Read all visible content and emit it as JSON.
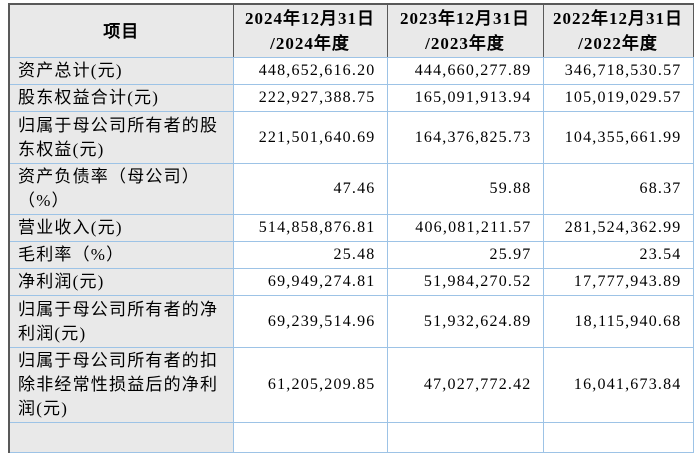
{
  "table": {
    "header": {
      "item": "项目",
      "cols": [
        {
          "line1": "2024年12月31日",
          "line2": "/2024年度"
        },
        {
          "line1": "2023年12月31日",
          "line2": "/2023年度"
        },
        {
          "line1": "2022年12月31日",
          "line2": "/2022年度"
        }
      ]
    },
    "rows": [
      {
        "label": "资产总计(元)",
        "v1": "448,652,616.20",
        "v2": "444,660,277.89",
        "v3": "346,718,530.57"
      },
      {
        "label": "股东权益合计(元)",
        "v1": "222,927,388.75",
        "v2": "165,091,913.94",
        "v3": "105,019,029.57"
      },
      {
        "label": "归属于母公司所有者的股东权益(元)",
        "v1": "221,501,640.69",
        "v2": "164,376,825.73",
        "v3": "104,355,661.99"
      },
      {
        "label": "资产负债率（母公司）（%）",
        "v1": "47.46",
        "v2": "59.88",
        "v3": "68.37"
      },
      {
        "label": "营业收入(元)",
        "v1": "514,858,876.81",
        "v2": "406,081,211.57",
        "v3": "281,524,362.99"
      },
      {
        "label": "毛利率（%）",
        "v1": "25.48",
        "v2": "25.97",
        "v3": "23.54"
      },
      {
        "label": "净利润(元)",
        "v1": "69,949,274.81",
        "v2": "51,984,270.52",
        "v3": "17,777,943.89"
      },
      {
        "label": "归属于母公司所有者的净利润(元)",
        "v1": "69,239,514.96",
        "v2": "51,932,624.89",
        "v3": "18,115,940.68"
      },
      {
        "label": "归属于母公司所有者的扣除非经常性损益后的净利润(元)",
        "v1": "61,205,209.85",
        "v2": "47,027,772.42",
        "v3": "16,041,673.84"
      }
    ],
    "colors": {
      "header_border": "#595959",
      "grid_line": "#9dc3e6",
      "shaded_cell_bg": "#e9e9e9"
    }
  }
}
